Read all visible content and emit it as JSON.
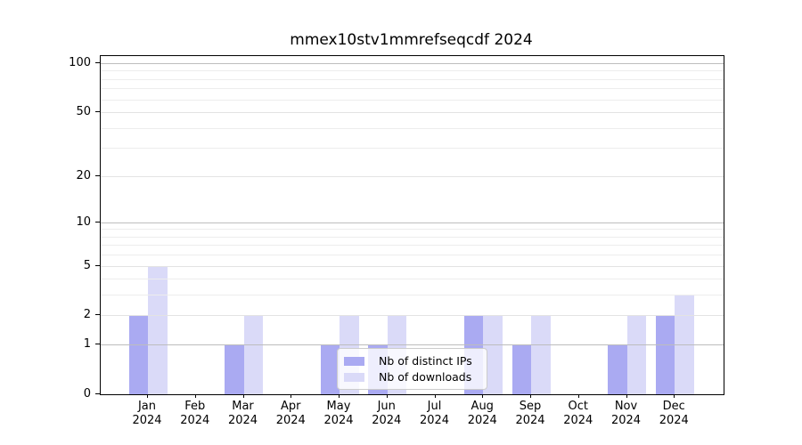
{
  "chart_data": {
    "type": "bar",
    "title": "mmex10stv1mmrefseqcdf 2024",
    "categories": [
      "Jan 2024",
      "Feb 2024",
      "Mar 2024",
      "Apr 2024",
      "May 2024",
      "Jun 2024",
      "Jul 2024",
      "Aug 2024",
      "Sep 2024",
      "Oct 2024",
      "Nov 2024",
      "Dec 2024"
    ],
    "series": [
      {
        "name": "Nb of distinct IPs",
        "color": "#aaaaf2",
        "values": [
          2,
          0,
          1,
          0,
          1,
          1,
          0,
          2,
          1,
          0,
          1,
          2
        ]
      },
      {
        "name": "Nb of downloads",
        "color": "#dadaf8",
        "values": [
          5,
          0,
          2,
          0,
          2,
          2,
          0,
          2,
          2,
          0,
          2,
          3
        ]
      }
    ],
    "yscale": "log10(1+x)",
    "ylim": [
      0,
      101
    ],
    "ytick_labels": [
      0,
      1,
      2,
      5,
      10,
      20,
      50,
      100
    ],
    "major_gridlines": [
      1,
      10,
      100
    ],
    "labeled_minor_gridlines": [
      2,
      5,
      20,
      50
    ],
    "minor_gridlines": [
      3,
      4,
      6,
      7,
      8,
      9,
      30,
      40,
      60,
      70,
      80,
      90
    ],
    "grid": true,
    "legend_position": "lower center",
    "colors": {
      "major_grid": "#bdbdbd",
      "labeled_grid": "#e3e3e3",
      "minor_grid": "#ededed",
      "spine": "#000000"
    }
  }
}
